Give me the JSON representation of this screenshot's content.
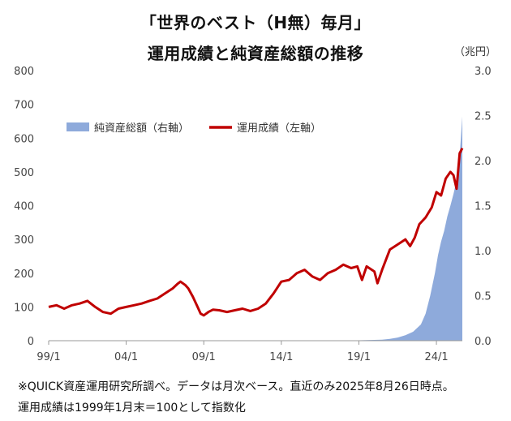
{
  "title_line1": "「世界のベスト（H無）毎月」",
  "title_line2": "運用成績と純資産総額の推移",
  "right_unit": "（兆円）",
  "notes": [
    "※QUICK資産運用研究所調べ。データは月次ベース。直近のみ2025年8月26日時点。",
    "運用成績は1999年1月末＝100として指数化"
  ],
  "colors": {
    "performance": "#c00000",
    "assets": "#8eaadb"
  },
  "chart_data": {
    "type": "line+area",
    "legend_placement": "upper-left",
    "grid": false,
    "x_tick_labels": [
      "99/1",
      "04/1",
      "09/1",
      "14/1",
      "19/1",
      "24/1"
    ],
    "x_tick_years": [
      1999,
      2004,
      2009,
      2014,
      2019,
      2024
    ],
    "xlim": [
      1999.0,
      2025.67
    ],
    "left_axis": {
      "lim": [
        0,
        800
      ],
      "ticks": [
        "0",
        "100",
        "200",
        "300",
        "400",
        "500",
        "600",
        "700",
        "800"
      ]
    },
    "right_axis": {
      "lim": [
        0,
        3.0
      ],
      "ticks": [
        "0.0",
        "0.5",
        "1.0",
        "1.5",
        "2.0",
        "2.5",
        "3.0"
      ]
    },
    "series": [
      {
        "name": "純資産総額（右軸）",
        "kind": "area",
        "axis": "right",
        "x": [
          2018.5,
          2019.5,
          2020.5,
          2021.0,
          2021.5,
          2022.0,
          2022.5,
          2023.0,
          2023.3,
          2023.6,
          2023.9,
          2024.1,
          2024.3,
          2024.5,
          2024.7,
          2024.9,
          2025.1,
          2025.3,
          2025.5,
          2025.67
        ],
        "values": [
          0.002,
          0.006,
          0.012,
          0.02,
          0.035,
          0.06,
          0.1,
          0.18,
          0.3,
          0.5,
          0.75,
          0.95,
          1.1,
          1.22,
          1.38,
          1.5,
          1.63,
          1.78,
          2.05,
          2.49
        ]
      },
      {
        "name": "運用成績（左軸）",
        "kind": "line",
        "axis": "left",
        "x": [
          1999.0,
          1999.5,
          2000.0,
          2000.5,
          2001.0,
          2001.5,
          2002.0,
          2002.5,
          2003.0,
          2003.5,
          2004.0,
          2004.5,
          2005.0,
          2005.5,
          2006.0,
          2006.5,
          2007.0,
          2007.3,
          2007.5,
          2007.8,
          2008.0,
          2008.3,
          2008.6,
          2008.8,
          2009.0,
          2009.3,
          2009.6,
          2010.0,
          2010.5,
          2011.0,
          2011.5,
          2012.0,
          2012.5,
          2013.0,
          2013.5,
          2014.0,
          2014.5,
          2015.0,
          2015.5,
          2016.0,
          2016.5,
          2017.0,
          2017.5,
          2018.0,
          2018.5,
          2018.9,
          2019.2,
          2019.5,
          2020.0,
          2020.2,
          2020.5,
          2021.0,
          2021.5,
          2022.0,
          2022.3,
          2022.6,
          2022.9,
          2023.3,
          2023.7,
          2024.0,
          2024.3,
          2024.6,
          2024.9,
          2025.1,
          2025.3,
          2025.5,
          2025.67
        ],
        "values": [
          100,
          105,
          95,
          105,
          110,
          118,
          100,
          85,
          80,
          95,
          100,
          105,
          110,
          118,
          125,
          140,
          155,
          168,
          175,
          165,
          155,
          130,
          100,
          80,
          75,
          85,
          92,
          90,
          85,
          90,
          95,
          88,
          95,
          110,
          140,
          175,
          180,
          200,
          210,
          190,
          180,
          200,
          210,
          225,
          215,
          220,
          180,
          220,
          205,
          170,
          210,
          270,
          285,
          300,
          280,
          305,
          345,
          365,
          395,
          440,
          430,
          480,
          500,
          490,
          450,
          555,
          570
        ]
      }
    ]
  }
}
